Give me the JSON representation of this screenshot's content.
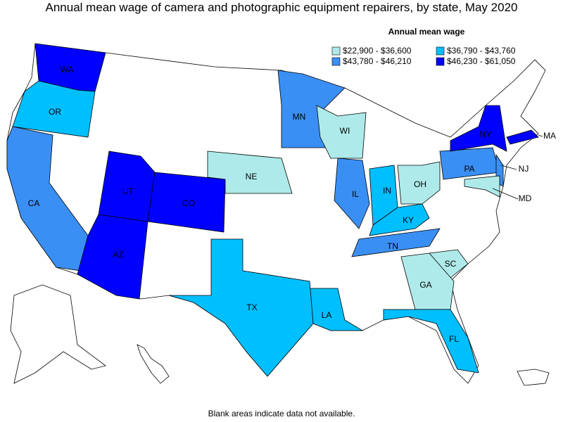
{
  "title": "Annual mean wage of camera and photographic equipment repairers, by state, May 2020",
  "legend": {
    "title": "Annual mean wage",
    "items": [
      {
        "label": "$22,900 - $36,600",
        "color": "#afeaea"
      },
      {
        "label": "$36,790 - $43,760",
        "color": "#00bfff"
      },
      {
        "label": "$43,780 - $46,210",
        "color": "#3a8ff5"
      },
      {
        "label": "$46,230 - $61,050",
        "color": "#0000ff"
      }
    ]
  },
  "states": [
    {
      "label": "WA",
      "color": "#0000ff"
    },
    {
      "label": "OR",
      "color": "#00bfff"
    },
    {
      "label": "CA",
      "color": "#3a8ff5"
    },
    {
      "label": "UT",
      "color": "#0000ff"
    },
    {
      "label": "CO",
      "color": "#0000ff"
    },
    {
      "label": "AZ",
      "color": "#0000ff"
    },
    {
      "label": "MN",
      "color": "#3a8ff5"
    },
    {
      "label": "WI",
      "color": "#afeaea"
    },
    {
      "label": "NE",
      "color": "#afeaea"
    },
    {
      "label": "IL",
      "color": "#3a8ff5"
    },
    {
      "label": "IN",
      "color": "#00bfff"
    },
    {
      "label": "OH",
      "color": "#afeaea"
    },
    {
      "label": "KY",
      "color": "#00bfff"
    },
    {
      "label": "TN",
      "color": "#3a8ff5"
    },
    {
      "label": "PA",
      "color": "#3a8ff5"
    },
    {
      "label": "NJ",
      "color": "#3a8ff5"
    },
    {
      "label": "MD",
      "color": "#afeaea"
    },
    {
      "label": "NY",
      "color": "#0000ff"
    },
    {
      "label": "MA",
      "color": "#0000ff"
    },
    {
      "label": "SC",
      "color": "#afeaea"
    },
    {
      "label": "GA",
      "color": "#afeaea"
    },
    {
      "label": "FL",
      "color": "#00bfff"
    },
    {
      "label": "LA",
      "color": "#00bfff"
    },
    {
      "label": "TX",
      "color": "#00bfff"
    }
  ],
  "footnote": "Blank areas indicate data not available."
}
